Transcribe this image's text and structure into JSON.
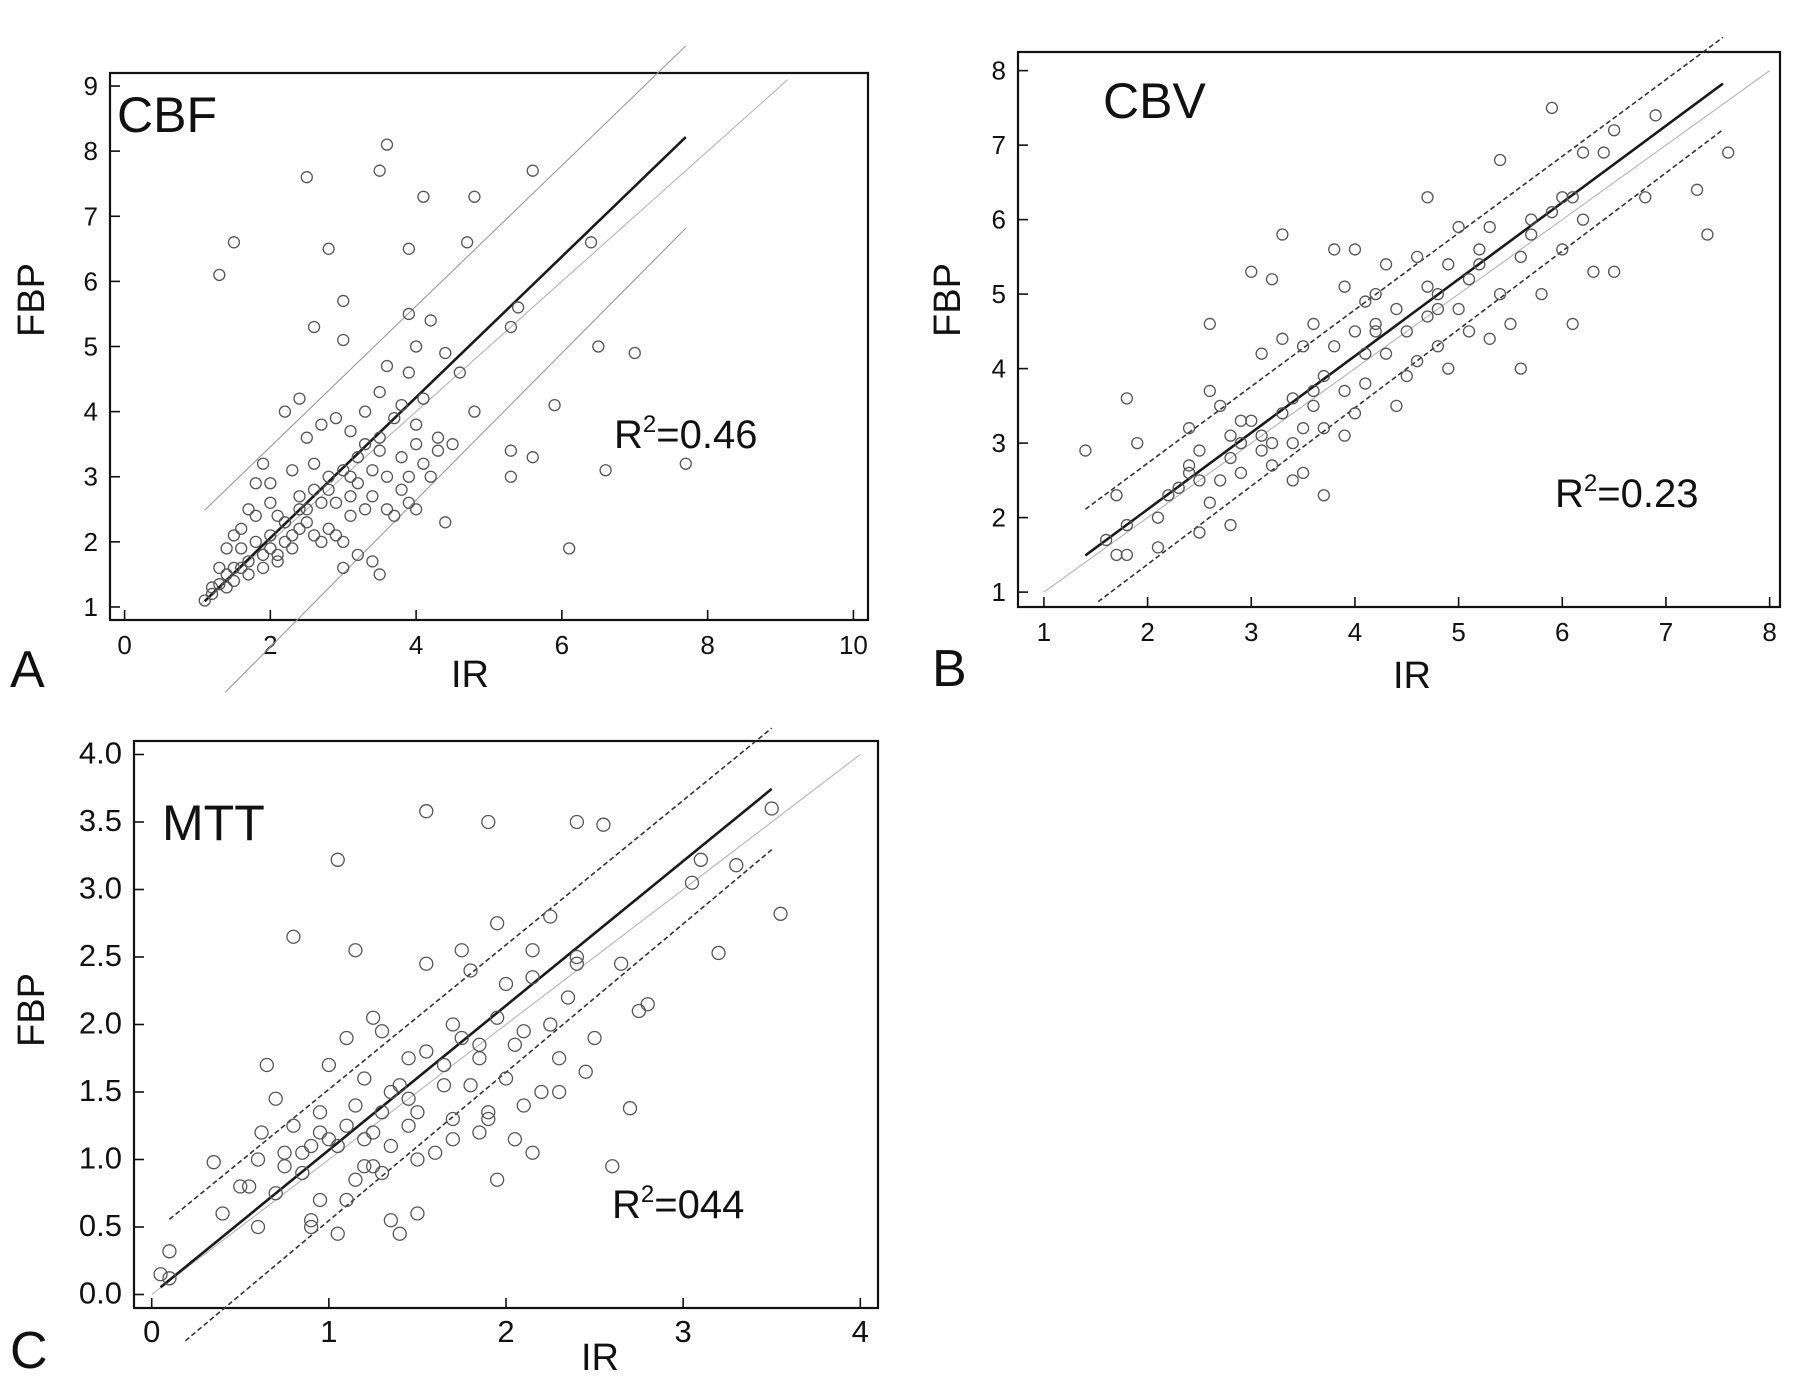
{
  "chart_data": [
    {
      "panel": "A",
      "type": "scatter",
      "title": "CBF",
      "annotation": {
        "text": "=0.46"
      },
      "xlabel": "IR",
      "ylabel": "FBP",
      "xlim": [
        -0.2,
        10.2
      ],
      "ylim": [
        0.8,
        9.2
      ],
      "xticks": [
        "0",
        "2",
        "4",
        "6",
        "8",
        "10"
      ],
      "yticks": [
        "1",
        "2",
        "3",
        "4",
        "5",
        "6",
        "7",
        "8",
        "9"
      ],
      "band_style": "solid",
      "points": [
        [
          1.1,
          1.1
        ],
        [
          1.2,
          1.2
        ],
        [
          1.3,
          1.35
        ],
        [
          1.4,
          1.5
        ],
        [
          1.5,
          1.6
        ],
        [
          1.5,
          1.4
        ],
        [
          1.6,
          1.9
        ],
        [
          1.7,
          1.7
        ],
        [
          1.8,
          2.0
        ],
        [
          1.9,
          1.8
        ],
        [
          1.3,
          1.6
        ],
        [
          1.4,
          1.3
        ],
        [
          1.6,
          2.2
        ],
        [
          1.8,
          2.4
        ],
        [
          2.0,
          2.1
        ],
        [
          2.0,
          2.6
        ],
        [
          2.1,
          1.7
        ],
        [
          2.2,
          2.3
        ],
        [
          2.3,
          1.9
        ],
        [
          2.4,
          2.7
        ],
        [
          2.5,
          2.5
        ],
        [
          2.6,
          3.2
        ],
        [
          2.7,
          2.0
        ],
        [
          2.8,
          2.8
        ],
        [
          2.9,
          2.6
        ],
        [
          3.0,
          3.1
        ],
        [
          3.1,
          2.4
        ],
        [
          3.2,
          2.9
        ],
        [
          3.3,
          3.5
        ],
        [
          3.4,
          2.7
        ],
        [
          3.5,
          3.4
        ],
        [
          3.6,
          2.5
        ],
        [
          3.7,
          3.9
        ],
        [
          3.8,
          3.3
        ],
        [
          3.9,
          2.6
        ],
        [
          4.0,
          3.5
        ],
        [
          4.1,
          4.2
        ],
        [
          4.2,
          3.0
        ],
        [
          4.4,
          2.3
        ],
        [
          4.6,
          4.6
        ],
        [
          1.9,
          3.2
        ],
        [
          2.0,
          2.9
        ],
        [
          2.3,
          3.1
        ],
        [
          2.5,
          3.6
        ],
        [
          2.7,
          3.8
        ],
        [
          2.9,
          3.9
        ],
        [
          3.1,
          3.7
        ],
        [
          3.3,
          4.0
        ],
        [
          3.5,
          4.3
        ],
        [
          3.6,
          4.7
        ],
        [
          3.8,
          4.1
        ],
        [
          3.9,
          4.6
        ],
        [
          4.0,
          5.0
        ],
        [
          4.2,
          5.4
        ],
        [
          4.4,
          4.9
        ],
        [
          3.0,
          5.7
        ],
        [
          3.0,
          5.1
        ],
        [
          2.6,
          5.3
        ],
        [
          2.4,
          4.2
        ],
        [
          2.2,
          4.0
        ],
        [
          1.7,
          1.5
        ],
        [
          1.9,
          1.6
        ],
        [
          2.1,
          1.8
        ],
        [
          2.3,
          2.1
        ],
        [
          2.5,
          2.3
        ],
        [
          2.8,
          2.2
        ],
        [
          3.0,
          2.0
        ],
        [
          3.2,
          1.8
        ],
        [
          3.4,
          1.7
        ],
        [
          3.5,
          1.5
        ],
        [
          3.0,
          1.6
        ],
        [
          2.7,
          2.6
        ],
        [
          2.6,
          2.1
        ],
        [
          3.1,
          3.0
        ],
        [
          3.3,
          2.5
        ],
        [
          3.7,
          2.4
        ],
        [
          3.9,
          3.0
        ],
        [
          4.1,
          3.2
        ],
        [
          4.3,
          3.6
        ],
        [
          4.5,
          3.5
        ],
        [
          1.4,
          1.9
        ],
        [
          1.5,
          2.1
        ],
        [
          1.7,
          2.5
        ],
        [
          1.8,
          2.9
        ],
        [
          2.1,
          2.4
        ],
        [
          2.4,
          2.5
        ],
        [
          2.6,
          2.8
        ],
        [
          2.8,
          3.0
        ],
        [
          3.2,
          3.3
        ],
        [
          3.4,
          3.1
        ],
        [
          2.9,
          2.1
        ],
        [
          3.1,
          2.7
        ],
        [
          3.6,
          3.0
        ],
        [
          3.8,
          2.8
        ],
        [
          4.0,
          2.5
        ],
        [
          1.2,
          1.3
        ],
        [
          1.6,
          1.6
        ],
        [
          2.0,
          1.9
        ],
        [
          2.2,
          2.0
        ],
        [
          2.4,
          2.2
        ],
        [
          1.3,
          6.1
        ],
        [
          1.5,
          6.6
        ],
        [
          2.5,
          7.6
        ],
        [
          2.8,
          6.5
        ],
        [
          3.5,
          7.7
        ],
        [
          3.6,
          8.1
        ],
        [
          4.1,
          7.3
        ],
        [
          4.8,
          7.3
        ],
        [
          5.6,
          7.7
        ],
        [
          3.9,
          6.5
        ],
        [
          4.7,
          6.6
        ],
        [
          5.4,
          5.6
        ],
        [
          5.3,
          5.3
        ],
        [
          6.4,
          6.6
        ],
        [
          4.8,
          4.0
        ],
        [
          5.3,
          3.4
        ],
        [
          5.3,
          3.0
        ],
        [
          5.6,
          3.3
        ],
        [
          5.9,
          4.1
        ],
        [
          6.5,
          5.0
        ],
        [
          7.0,
          4.9
        ],
        [
          6.6,
          3.1
        ],
        [
          7.7,
          3.2
        ],
        [
          6.1,
          1.9
        ],
        [
          3.9,
          5.5
        ],
        [
          4.0,
          3.8
        ],
        [
          3.5,
          3.6
        ],
        [
          4.3,
          3.4
        ]
      ]
    },
    {
      "panel": "B",
      "type": "scatter",
      "title": "CBV",
      "annotation": {
        "text": "=0.23"
      },
      "xlabel": "IR",
      "ylabel": "FBP",
      "xlim": [
        0.75,
        8.1
      ],
      "ylim": [
        0.8,
        8.25
      ],
      "xticks": [
        "1",
        "2",
        "3",
        "4",
        "5",
        "6",
        "7",
        "8"
      ],
      "yticks": [
        "1",
        "2",
        "3",
        "4",
        "5",
        "6",
        "7",
        "8"
      ],
      "band_style": "dashed",
      "points": [
        [
          1.4,
          2.9
        ],
        [
          1.6,
          1.7
        ],
        [
          1.7,
          2.3
        ],
        [
          1.7,
          1.5
        ],
        [
          1.8,
          1.5
        ],
        [
          1.8,
          1.9
        ],
        [
          1.9,
          3.0
        ],
        [
          1.8,
          3.6
        ],
        [
          2.1,
          1.6
        ],
        [
          2.1,
          2.0
        ],
        [
          2.3,
          2.4
        ],
        [
          2.4,
          2.7
        ],
        [
          2.4,
          3.2
        ],
        [
          2.5,
          2.5
        ],
        [
          2.5,
          2.9
        ],
        [
          2.5,
          1.8
        ],
        [
          2.6,
          3.7
        ],
        [
          2.6,
          2.2
        ],
        [
          2.6,
          4.6
        ],
        [
          2.7,
          2.5
        ],
        [
          2.7,
          3.5
        ],
        [
          2.8,
          2.8
        ],
        [
          2.8,
          3.1
        ],
        [
          2.8,
          1.9
        ],
        [
          2.9,
          3.0
        ],
        [
          2.9,
          2.6
        ],
        [
          3.0,
          5.3
        ],
        [
          3.0,
          3.3
        ],
        [
          3.1,
          2.9
        ],
        [
          3.1,
          4.2
        ],
        [
          3.2,
          3.0
        ],
        [
          3.2,
          2.7
        ],
        [
          3.2,
          5.2
        ],
        [
          3.3,
          3.4
        ],
        [
          3.3,
          4.4
        ],
        [
          3.3,
          5.8
        ],
        [
          3.4,
          3.0
        ],
        [
          3.4,
          3.6
        ],
        [
          3.4,
          2.5
        ],
        [
          3.5,
          2.6
        ],
        [
          3.5,
          3.2
        ],
        [
          3.5,
          4.3
        ],
        [
          3.6,
          3.5
        ],
        [
          3.6,
          4.6
        ],
        [
          3.7,
          3.9
        ],
        [
          3.7,
          3.2
        ],
        [
          3.7,
          2.3
        ],
        [
          3.8,
          4.3
        ],
        [
          3.8,
          5.6
        ],
        [
          3.9,
          3.7
        ],
        [
          3.9,
          3.1
        ],
        [
          3.9,
          5.1
        ],
        [
          4.0,
          4.5
        ],
        [
          4.0,
          5.6
        ],
        [
          4.0,
          3.4
        ],
        [
          4.1,
          4.2
        ],
        [
          4.1,
          3.8
        ],
        [
          4.1,
          4.9
        ],
        [
          4.2,
          4.5
        ],
        [
          4.2,
          5.0
        ],
        [
          4.3,
          4.2
        ],
        [
          4.3,
          5.4
        ],
        [
          4.4,
          3.5
        ],
        [
          4.4,
          4.8
        ],
        [
          4.5,
          3.9
        ],
        [
          4.5,
          4.5
        ],
        [
          4.6,
          5.5
        ],
        [
          4.6,
          4.1
        ],
        [
          4.7,
          4.7
        ],
        [
          4.7,
          5.1
        ],
        [
          4.7,
          6.3
        ],
        [
          4.8,
          4.8
        ],
        [
          4.8,
          4.3
        ],
        [
          4.9,
          5.4
        ],
        [
          4.9,
          4.0
        ],
        [
          5.0,
          4.8
        ],
        [
          5.0,
          5.9
        ],
        [
          5.1,
          4.5
        ],
        [
          5.1,
          5.2
        ],
        [
          5.2,
          5.4
        ],
        [
          5.3,
          4.4
        ],
        [
          5.3,
          5.9
        ],
        [
          5.4,
          5.0
        ],
        [
          5.4,
          6.8
        ],
        [
          5.5,
          4.6
        ],
        [
          5.6,
          5.5
        ],
        [
          5.6,
          4.0
        ],
        [
          5.7,
          5.8
        ],
        [
          5.8,
          5.0
        ],
        [
          5.9,
          6.1
        ],
        [
          5.9,
          7.5
        ],
        [
          6.0,
          5.6
        ],
        [
          6.0,
          6.3
        ],
        [
          6.1,
          4.6
        ],
        [
          6.2,
          6.0
        ],
        [
          6.2,
          6.9
        ],
        [
          6.3,
          5.3
        ],
        [
          6.4,
          6.9
        ],
        [
          6.5,
          7.2
        ],
        [
          6.5,
          5.3
        ],
        [
          6.8,
          6.3
        ],
        [
          6.9,
          7.4
        ],
        [
          7.3,
          6.4
        ],
        [
          7.4,
          5.8
        ],
        [
          7.6,
          6.9
        ],
        [
          2.2,
          2.3
        ],
        [
          2.4,
          2.6
        ],
        [
          2.9,
          3.3
        ],
        [
          3.1,
          3.1
        ],
        [
          3.6,
          3.7
        ],
        [
          4.2,
          4.6
        ],
        [
          4.8,
          5.0
        ],
        [
          5.2,
          5.6
        ],
        [
          5.7,
          6.0
        ],
        [
          6.1,
          6.3
        ]
      ]
    },
    {
      "panel": "C",
      "type": "scatter",
      "title": "MTT",
      "annotation": {
        "text": "=044"
      },
      "xlabel": "IR",
      "ylabel": "FBP",
      "xlim": [
        -0.1,
        4.1
      ],
      "ylim": [
        -0.1,
        4.1
      ],
      "xticks": [
        "0",
        "1",
        "2",
        "3",
        "4"
      ],
      "yticks": [
        "0.0",
        "0.5",
        "1.0",
        "1.5",
        "2.0",
        "2.5",
        "3.0",
        "3.5",
        "4.0"
      ],
      "band_style": "dashed",
      "points": [
        [
          0.05,
          0.15
        ],
        [
          0.1,
          0.12
        ],
        [
          0.1,
          0.32
        ],
        [
          0.35,
          0.98
        ],
        [
          0.55,
          0.8
        ],
        [
          0.6,
          0.5
        ],
        [
          0.62,
          1.2
        ],
        [
          0.65,
          1.7
        ],
        [
          0.7,
          0.75
        ],
        [
          0.7,
          1.45
        ],
        [
          0.75,
          1.05
        ],
        [
          0.8,
          2.65
        ],
        [
          0.8,
          1.25
        ],
        [
          0.85,
          0.9
        ],
        [
          0.9,
          1.1
        ],
        [
          0.9,
          0.55
        ],
        [
          0.95,
          1.35
        ],
        [
          0.95,
          0.7
        ],
        [
          1.0,
          1.15
        ],
        [
          1.0,
          1.7
        ],
        [
          1.05,
          3.22
        ],
        [
          1.05,
          0.45
        ],
        [
          1.1,
          1.25
        ],
        [
          1.1,
          1.9
        ],
        [
          1.15,
          0.85
        ],
        [
          1.15,
          2.55
        ],
        [
          1.2,
          1.15
        ],
        [
          1.2,
          1.6
        ],
        [
          1.25,
          2.05
        ],
        [
          1.25,
          0.95
        ],
        [
          1.3,
          1.35
        ],
        [
          1.3,
          1.95
        ],
        [
          1.35,
          1.1
        ],
        [
          1.35,
          0.55
        ],
        [
          1.4,
          1.55
        ],
        [
          1.45,
          1.25
        ],
        [
          1.45,
          1.75
        ],
        [
          1.5,
          0.6
        ],
        [
          1.5,
          1.35
        ],
        [
          1.55,
          2.45
        ],
        [
          1.55,
          3.58
        ],
        [
          1.6,
          1.05
        ],
        [
          1.65,
          1.7
        ],
        [
          1.7,
          1.3
        ],
        [
          1.7,
          2.0
        ],
        [
          1.75,
          2.55
        ],
        [
          1.8,
          1.55
        ],
        [
          1.8,
          2.4
        ],
        [
          1.85,
          1.2
        ],
        [
          1.85,
          1.85
        ],
        [
          1.9,
          3.5
        ],
        [
          1.9,
          1.35
        ],
        [
          1.95,
          2.75
        ],
        [
          1.95,
          0.85
        ],
        [
          2.0,
          1.6
        ],
        [
          2.0,
          2.3
        ],
        [
          2.05,
          1.15
        ],
        [
          2.1,
          1.95
        ],
        [
          2.15,
          2.55
        ],
        [
          2.15,
          1.05
        ],
        [
          2.2,
          1.5
        ],
        [
          2.25,
          2.8
        ],
        [
          2.3,
          1.75
        ],
        [
          2.35,
          2.2
        ],
        [
          2.4,
          3.5
        ],
        [
          2.4,
          2.45
        ],
        [
          2.45,
          1.65
        ],
        [
          2.5,
          1.9
        ],
        [
          2.55,
          3.48
        ],
        [
          2.6,
          0.95
        ],
        [
          2.65,
          2.45
        ],
        [
          2.7,
          1.38
        ],
        [
          2.75,
          2.1
        ],
        [
          2.8,
          2.15
        ],
        [
          3.05,
          3.05
        ],
        [
          3.1,
          3.22
        ],
        [
          3.2,
          2.53
        ],
        [
          3.3,
          3.18
        ],
        [
          3.5,
          3.6
        ],
        [
          3.55,
          2.82
        ],
        [
          0.5,
          0.8
        ],
        [
          0.75,
          0.95
        ],
        [
          0.95,
          1.2
        ],
        [
          1.15,
          1.4
        ],
        [
          1.35,
          1.5
        ],
        [
          1.55,
          1.8
        ],
        [
          1.75,
          1.9
        ],
        [
          1.95,
          2.05
        ],
        [
          2.15,
          2.35
        ],
        [
          2.4,
          2.5
        ],
        [
          0.4,
          0.6
        ],
        [
          0.6,
          1.0
        ],
        [
          0.85,
          1.05
        ],
        [
          1.05,
          1.1
        ],
        [
          1.25,
          1.2
        ],
        [
          1.45,
          1.45
        ],
        [
          1.65,
          1.55
        ],
        [
          1.85,
          1.75
        ],
        [
          2.05,
          1.85
        ],
        [
          2.25,
          2.0
        ],
        [
          1.1,
          0.7
        ],
        [
          1.3,
          0.9
        ],
        [
          1.5,
          1.0
        ],
        [
          1.7,
          1.15
        ],
        [
          1.9,
          1.3
        ],
        [
          2.1,
          1.4
        ],
        [
          2.3,
          1.5
        ],
        [
          1.4,
          0.45
        ],
        [
          1.2,
          0.95
        ],
        [
          0.9,
          0.5
        ]
      ]
    }
  ]
}
